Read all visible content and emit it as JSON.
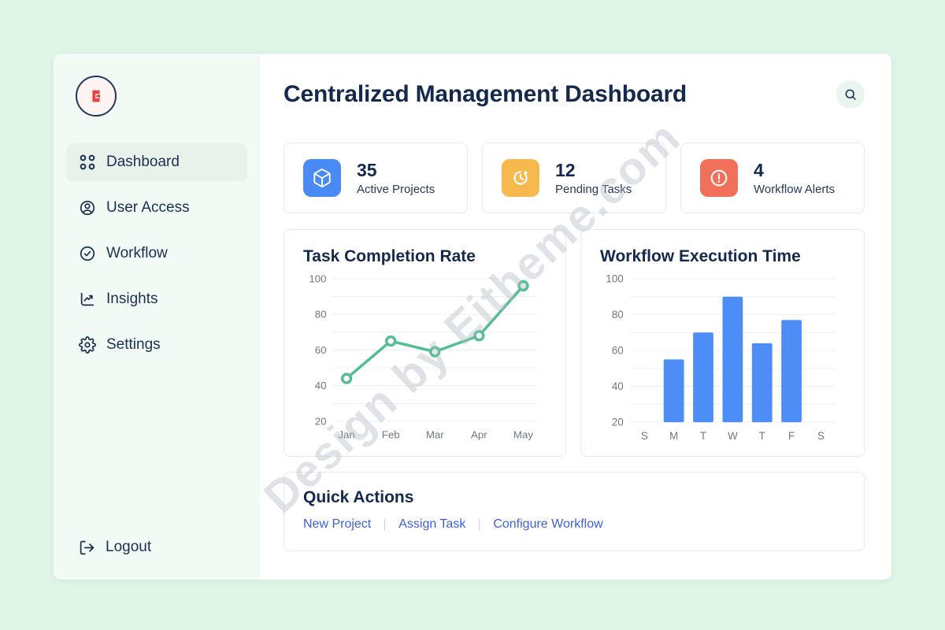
{
  "header": {
    "title": "Centralized Management Dashboard"
  },
  "sidebar": {
    "items": [
      {
        "label": "Dashboard",
        "icon": "grid-icon",
        "active": true
      },
      {
        "label": "User Access",
        "icon": "user-circle-icon",
        "active": false
      },
      {
        "label": "Workflow",
        "icon": "check-circle-icon",
        "active": false
      },
      {
        "label": "Insights",
        "icon": "trend-up-icon",
        "active": false
      },
      {
        "label": "Settings",
        "icon": "gear-icon",
        "active": false
      }
    ],
    "logout_label": "Logout"
  },
  "stats": [
    {
      "value": "35",
      "label": "Active Projects",
      "icon": "cube-icon",
      "color": "#4A8AF4"
    },
    {
      "value": "12",
      "label": "Pending Tasks",
      "icon": "clock-history-icon",
      "color": "#F7B94E"
    },
    {
      "value": "4",
      "label": "Workflow Alerts",
      "icon": "alert-circle-icon",
      "color": "#F1705C"
    }
  ],
  "chart_data": [
    {
      "type": "line",
      "title": "Task Completion Rate",
      "x": [
        "Jan",
        "Feb",
        "Mar",
        "Apr",
        "May"
      ],
      "values": [
        44,
        65,
        59,
        68,
        96
      ],
      "ylim": [
        20,
        100
      ],
      "yticks": [
        20,
        40,
        60,
        80,
        100
      ],
      "grid_step": 10,
      "grid": true,
      "legend": "none",
      "line_color": "#53BE8F",
      "point_fill": "#FFFFFF"
    },
    {
      "type": "bar",
      "title": "Workflow Execution Time",
      "categories": [
        "S",
        "M",
        "T",
        "W",
        "T",
        "F",
        "S"
      ],
      "values": [
        null,
        55,
        70,
        90,
        64,
        77,
        null
      ],
      "ylim": [
        20,
        100
      ],
      "yticks": [
        20,
        40,
        60,
        80,
        100
      ],
      "grid_step": 10,
      "grid": true,
      "legend": "none",
      "bar_color": "#4C8DF6"
    }
  ],
  "quick_actions": {
    "title": "Quick Actions",
    "links": [
      "New Project",
      "Assign Task",
      "Configure Workflow"
    ]
  },
  "watermark": {
    "text": "Design by Eitheme.com"
  },
  "icons": {
    "logo": "brand-mark-icon",
    "header": "search-icon",
    "sidebar": [
      "grid-icon",
      "user-circle-icon",
      "check-circle-icon",
      "trend-up-icon",
      "gear-icon"
    ],
    "logout": "logout-icon",
    "stats": [
      "cube-icon",
      "clock-history-icon",
      "alert-circle-icon"
    ]
  },
  "colors": {
    "page_background": "#DFF5E6",
    "sidebar_background": "#F1FAF4",
    "navy_text": "#14294C",
    "link_blue": "#3D5FD8",
    "active_item_background": "#E9F1EB"
  }
}
